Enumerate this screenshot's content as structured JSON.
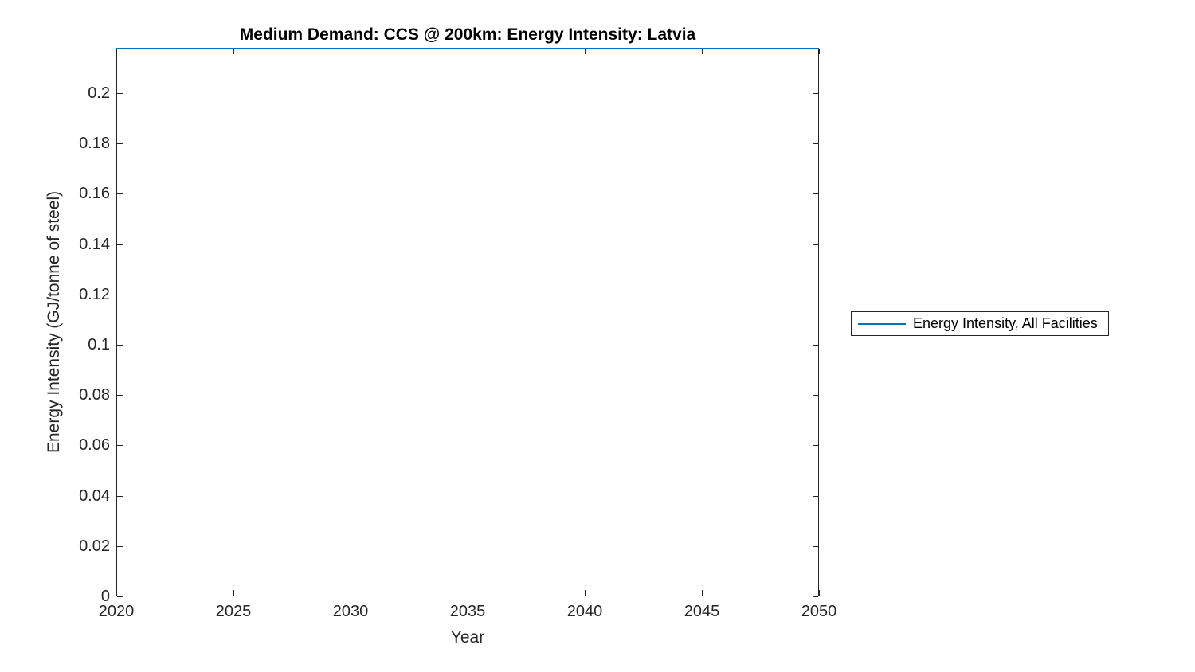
{
  "chart_data": {
    "type": "line",
    "title": "Medium Demand: CCS @ 200km: Energy Intensity: Latvia",
    "xlabel": "Year",
    "ylabel": "Energy Intensity (GJ/tonne of steel)",
    "xlim": [
      2020,
      2050
    ],
    "ylim": [
      0,
      0.218
    ],
    "x_ticks": [
      2020,
      2025,
      2030,
      2035,
      2040,
      2045,
      2050
    ],
    "x_tick_labels": [
      "2020",
      "2025",
      "2030",
      "2035",
      "2040",
      "2045",
      "2050"
    ],
    "y_ticks": [
      0,
      0.02,
      0.04,
      0.06,
      0.08,
      0.1,
      0.12,
      0.14,
      0.16,
      0.18,
      0.2
    ],
    "y_tick_labels": [
      "0",
      "0.02",
      "0.04",
      "0.06",
      "0.08",
      "0.1",
      "0.12",
      "0.14",
      "0.16",
      "0.18",
      "0.2"
    ],
    "grid": false,
    "tick_direction": "in",
    "box": true,
    "axis_color": "#262626",
    "background": "#ffffff",
    "series": [
      {
        "name": "Energy Intensity, All Facilities",
        "type": "line",
        "color": "#0072bd",
        "x": [
          2020,
          2050
        ],
        "y": [
          0.218,
          0.218
        ]
      }
    ],
    "legend": {
      "position": "right-outside",
      "entries": [
        {
          "label": "Energy Intensity, All Facilities",
          "color": "#0072bd",
          "marker": "line"
        }
      ]
    }
  }
}
